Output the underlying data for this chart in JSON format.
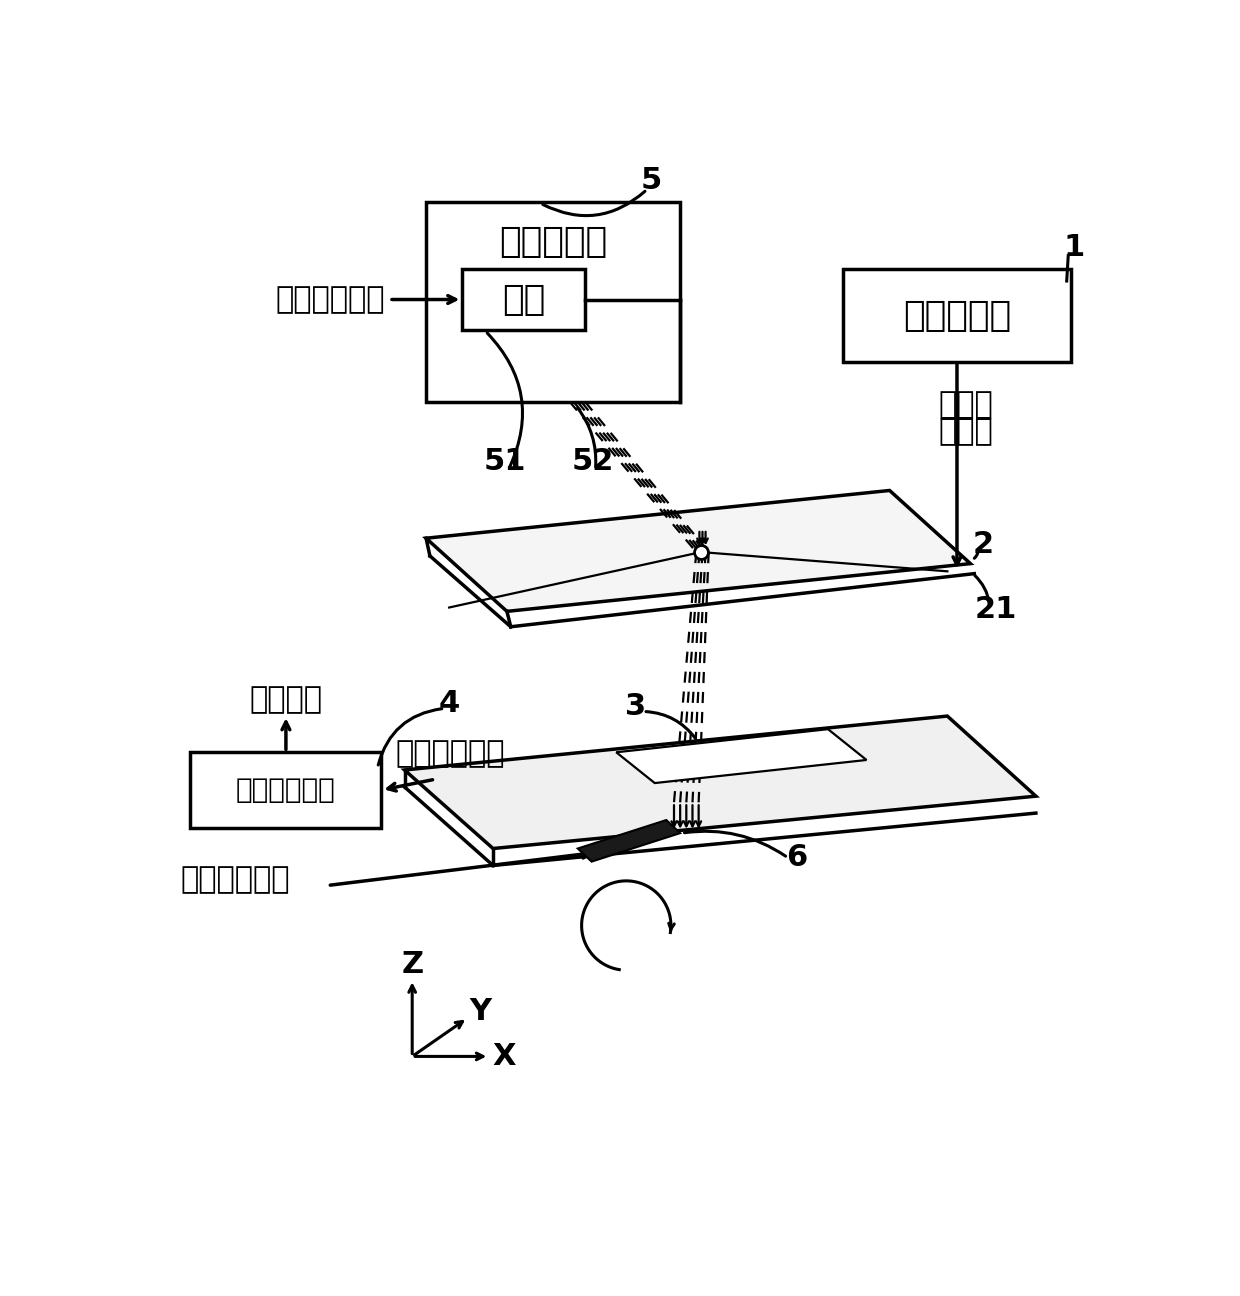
{
  "bg_color": "#ffffff",
  "figsize": [
    12.4,
    12.96
  ],
  "dpi": 100,
  "labels": {
    "laser_machine": "激光雕刻机",
    "motor": "马达",
    "motor_signal": "马达控制信号",
    "signal_gen": "信号产生器",
    "first_rf_1": "第一射",
    "first_rf_2": "频信号",
    "rf_device": "射频量测设备",
    "meas_val": "量测数値",
    "second_rf": "第二射频信号",
    "angle_signal": "角度控制信号",
    "label_1": "1",
    "label_2": "2",
    "label_3": "3",
    "label_4": "4",
    "label_5": "5",
    "label_6": "6",
    "label_21": "21",
    "label_51": "51",
    "label_52": "52",
    "axis_x": "X",
    "axis_y": "Y",
    "axis_z": "Z"
  }
}
